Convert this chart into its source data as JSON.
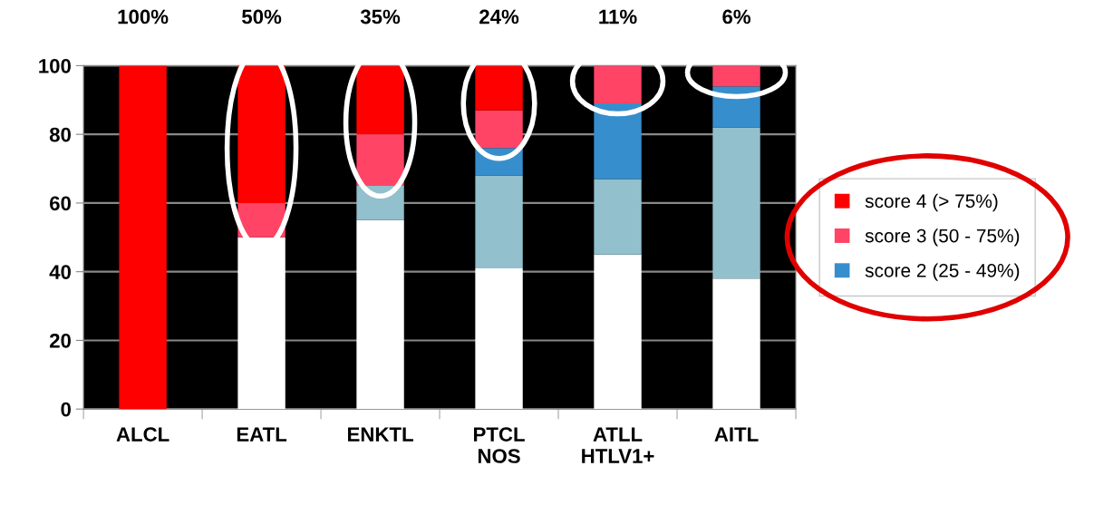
{
  "chart_data": {
    "type": "bar",
    "stacked": true,
    "categories": [
      "ALCL",
      "EATL",
      "ENKTL",
      "PTCL\nNOS",
      "ATLL\nHTLV1+",
      "AITL"
    ],
    "series": [
      {
        "color": "#ffffff",
        "values": [
          0,
          50,
          55,
          41,
          45,
          38
        ]
      },
      {
        "color": "#92c0cc",
        "values": [
          0,
          0,
          10,
          27,
          22,
          44
        ]
      },
      {
        "name": "score 2 (25 - 49%)",
        "color": "#378ecd",
        "values": [
          0,
          0,
          0,
          8,
          22,
          12
        ]
      },
      {
        "name": "score 3 (50 - 75%)",
        "color": "#ff4466",
        "values": [
          0,
          10,
          15,
          11,
          11,
          6
        ]
      },
      {
        "name": "score 4 (> 75%)",
        "color": "#ff0000",
        "values": [
          100,
          40,
          20,
          13,
          0,
          0
        ]
      }
    ],
    "annotations": [
      "100%",
      "50%",
      "35%",
      "24%",
      "11%",
      "6%"
    ],
    "ylim": [
      0,
      100
    ],
    "yticks": [
      0,
      20,
      40,
      60,
      80,
      100
    ],
    "grid": "y",
    "legend": "right"
  }
}
